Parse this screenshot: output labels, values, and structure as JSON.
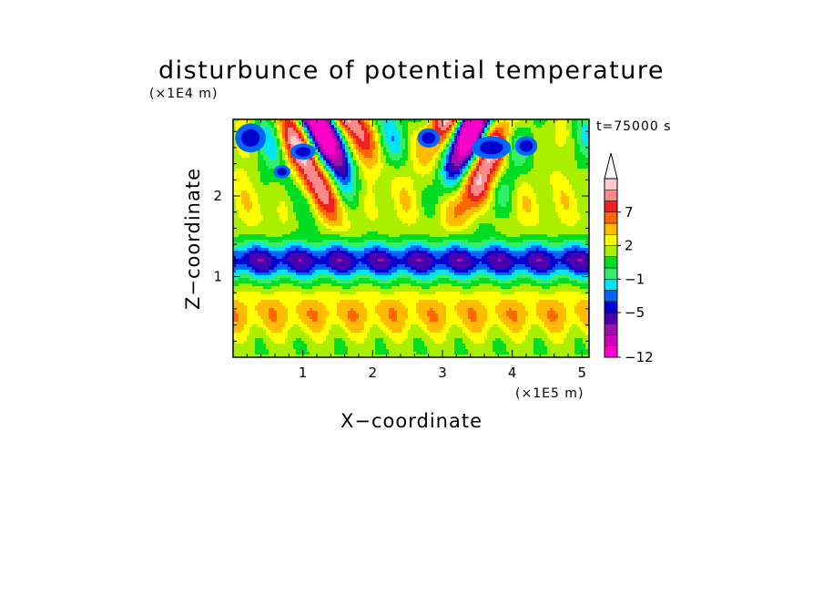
{
  "chart_data": {
    "type": "heatmap",
    "title": "disturbunce of potential temperature",
    "time_label": "t=75000 s",
    "xlabel": "X−coordinate",
    "ylabel": "Z−coordinate",
    "x_scale_label": "(×1E5 m)",
    "y_scale_label": "(×1E4 m)",
    "xlim": [
      0,
      5.1
    ],
    "ylim": [
      0,
      2.95
    ],
    "x_ticks": [
      "1",
      "2",
      "3",
      "4",
      "5"
    ],
    "y_ticks": [
      "1",
      "2"
    ],
    "grid": false,
    "colorbar": {
      "placement": "right",
      "labels": [
        "7",
        "2",
        "−1",
        "−5",
        "−12"
      ],
      "levels": [
        -12,
        -10,
        -8,
        -6,
        -5,
        -3,
        -2,
        -1,
        0,
        1,
        2,
        3,
        5,
        7,
        9,
        11
      ],
      "colors": [
        "#ff00cc",
        "#d000b8",
        "#9a10b0",
        "#4a00b0",
        "#0000d0",
        "#0066ff",
        "#00e5ff",
        "#33ee66",
        "#00dd22",
        "#aaee00",
        "#ffff00",
        "#ffbb00",
        "#ff6600",
        "#ee2020",
        "#ff8888",
        "#ffcccc"
      ],
      "extend": "max"
    },
    "field_description": "perturbation potential temperature with stable layer near 1.2E4 m and gravity-wave plumes rising from x=1.4 and x=3.3"
  }
}
